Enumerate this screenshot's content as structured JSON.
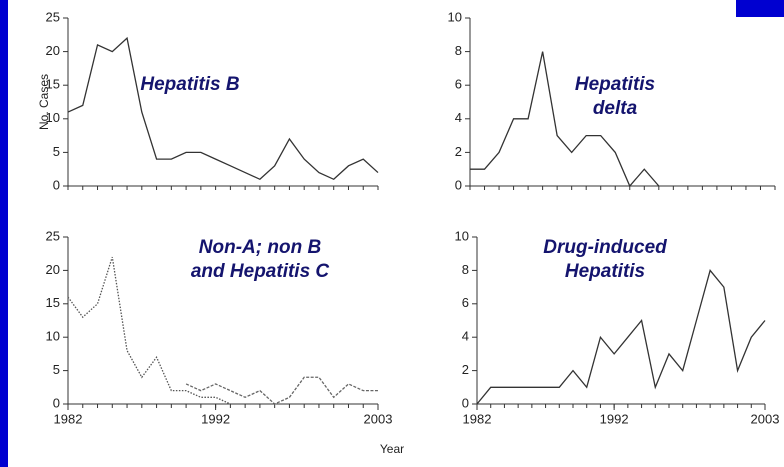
{
  "chart_data": [
    {
      "type": "line",
      "ylabel": "No. Cases",
      "annotation": [
        "Hepatitis B"
      ],
      "x": [
        1982,
        1983,
        1984,
        1985,
        1986,
        1987,
        1988,
        1989,
        1990,
        1991,
        1992,
        1993,
        1994,
        1995,
        1996,
        1997,
        1998,
        1999,
        2000,
        2001,
        2002,
        2003
      ],
      "series": [
        {
          "color": "#333333",
          "values": [
            11,
            12,
            21,
            20,
            22,
            11,
            4,
            4,
            5,
            5,
            4,
            3,
            2,
            1,
            3,
            7,
            4,
            2,
            1,
            3,
            4,
            2
          ]
        }
      ],
      "xlim": [
        1982,
        2003
      ],
      "ylim": [
        0,
        25
      ],
      "yticks": [
        0,
        5,
        10,
        15,
        20,
        25
      ]
    },
    {
      "type": "line",
      "annotation": [
        "Hepatitis",
        "delta"
      ],
      "x": [
        1982,
        1983,
        1984,
        1985,
        1986,
        1987,
        1988,
        1989,
        1990,
        1991,
        1992,
        1993,
        1994,
        1995,
        1996,
        1997,
        1998,
        1999,
        2000,
        2001,
        2002,
        2003
      ],
      "series": [
        {
          "color": "#333333",
          "values": [
            1,
            1,
            2,
            4,
            4,
            8,
            3,
            2,
            3,
            3,
            2,
            0,
            1,
            0,
            null,
            null,
            null,
            null,
            null,
            null,
            null,
            null
          ]
        }
      ],
      "xlim": [
        1982,
        2003
      ],
      "ylim": [
        0,
        10
      ],
      "yticks": [
        0,
        2,
        4,
        6,
        8,
        10
      ]
    },
    {
      "type": "line",
      "annotation": [
        "Non-A; non B",
        "and Hepatitis C"
      ],
      "x": [
        1982,
        1983,
        1984,
        1985,
        1986,
        1987,
        1988,
        1989,
        1990,
        1991,
        1992,
        1993,
        1994,
        1995,
        1996,
        1997,
        1998,
        1999,
        2000,
        2001,
        2002,
        2003
      ],
      "series": [
        {
          "color": "#555555",
          "dash": "dotted",
          "values": [
            16,
            13,
            15,
            22,
            8,
            4,
            7,
            2,
            2,
            1,
            1,
            0,
            null,
            null,
            null,
            null,
            null,
            null,
            null,
            null,
            null,
            null
          ]
        },
        {
          "color": "#666666",
          "dash": "dashed",
          "values": [
            null,
            null,
            null,
            null,
            null,
            null,
            null,
            null,
            3,
            2,
            3,
            2,
            1,
            2,
            0,
            1,
            4,
            4,
            1,
            3,
            2,
            2
          ]
        }
      ],
      "xlim": [
        1982,
        2003
      ],
      "ylim": [
        0,
        25
      ],
      "yticks": [
        0,
        5,
        10,
        15,
        20,
        25
      ],
      "xticks": [
        1982,
        1992,
        2003
      ]
    },
    {
      "type": "line",
      "annotation": [
        "Drug-induced",
        "Hepatitis"
      ],
      "x": [
        1982,
        1983,
        1984,
        1985,
        1986,
        1987,
        1988,
        1989,
        1990,
        1991,
        1992,
        1993,
        1994,
        1995,
        1996,
        1997,
        1998,
        1999,
        2000,
        2001,
        2002,
        2003
      ],
      "series": [
        {
          "color": "#333333",
          "values": [
            0,
            1,
            1,
            1,
            1,
            1,
            1,
            2,
            1,
            4,
            3,
            4,
            5,
            1,
            3,
            2,
            5,
            8,
            7,
            2,
            4,
            5
          ]
        }
      ],
      "xlim": [
        1982,
        2003
      ],
      "ylim": [
        0,
        10
      ],
      "yticks": [
        0,
        2,
        4,
        6,
        8,
        10
      ],
      "xticks": [
        1982,
        1992,
        2003
      ]
    }
  ],
  "xlabel": "Year"
}
